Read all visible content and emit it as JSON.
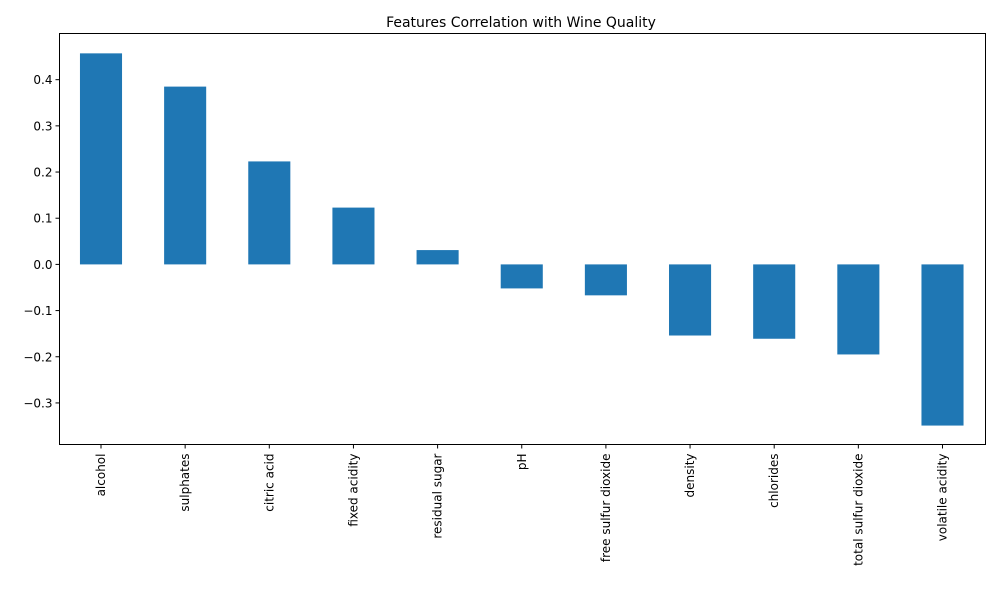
{
  "chart_data": {
    "type": "bar",
    "title": "Features Correlation with Wine Quality",
    "xlabel": "",
    "ylabel": "",
    "categories": [
      "alcohol",
      "sulphates",
      "citric acid",
      "fixed acidity",
      "residual sugar",
      "pH",
      "free sulfur dioxide",
      "density",
      "chlorides",
      "total sulfur dioxide",
      "volatile acidity"
    ],
    "values": [
      0.457,
      0.385,
      0.223,
      0.123,
      0.031,
      -0.052,
      -0.067,
      -0.154,
      -0.161,
      -0.195,
      -0.349
    ],
    "ylim": [
      -0.39,
      0.5
    ],
    "yticks": [
      "−0.3",
      "−0.2",
      "−0.1",
      "0.0",
      "0.1",
      "0.2",
      "0.3",
      "0.4"
    ],
    "ytick_values": [
      -0.3,
      -0.2,
      -0.1,
      0.0,
      0.1,
      0.2,
      0.3,
      0.4
    ],
    "bar_color": "#1f77b4",
    "grid": false,
    "legend": "none"
  }
}
